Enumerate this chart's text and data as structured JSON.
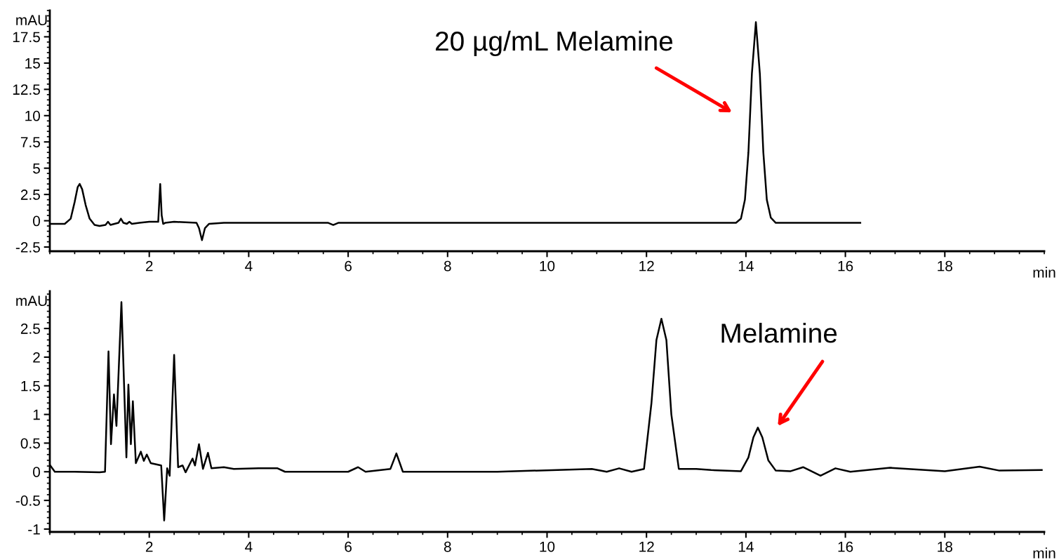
{
  "chart_data": [
    {
      "type": "line",
      "xlabel": "min",
      "ylabel": "mAU",
      "xlim": [
        0,
        20
      ],
      "ylim": [
        -2.9,
        20
      ],
      "xticks": [
        2,
        4,
        6,
        8,
        10,
        12,
        14,
        16,
        18
      ],
      "yticks": [
        -2.5,
        0,
        2.5,
        5,
        7.5,
        10,
        12.5,
        15,
        17.5
      ],
      "grid": false,
      "legend": false,
      "marker": "none",
      "line_style": "solid",
      "annotations": [
        "20 µg/mL Melamine"
      ],
      "series": [
        {
          "color": "#000000",
          "x": [
            0,
            0.3,
            0.42,
            0.5,
            0.56,
            0.6,
            0.65,
            0.72,
            0.8,
            0.9,
            1.0,
            1.12,
            1.17,
            1.22,
            1.38,
            1.43,
            1.48,
            1.55,
            1.6,
            1.65,
            1.8,
            2.0,
            2.18,
            2.22,
            2.25,
            2.28,
            2.32,
            2.5,
            2.95,
            3.0,
            3.06,
            3.12,
            3.2,
            3.5,
            5.6,
            5.7,
            5.8,
            7.0,
            13.8,
            13.9,
            13.98,
            14.05,
            14.12,
            14.2,
            14.28,
            14.35,
            14.42,
            14.5,
            14.6,
            16.3
          ],
          "values": [
            -0.3,
            -0.3,
            0.2,
            1.8,
            3.2,
            3.5,
            3.0,
            1.5,
            0.2,
            -0.4,
            -0.5,
            -0.4,
            -0.1,
            -0.4,
            -0.2,
            0.2,
            -0.2,
            -0.3,
            -0.1,
            -0.3,
            -0.2,
            -0.1,
            -0.1,
            3.5,
            0.5,
            -0.3,
            -0.2,
            -0.1,
            -0.2,
            -0.7,
            -1.85,
            -0.7,
            -0.3,
            -0.2,
            -0.2,
            -0.4,
            -0.2,
            -0.2,
            -0.2,
            0.2,
            2.0,
            6.5,
            14.0,
            18.9,
            14.0,
            6.5,
            2.0,
            0.3,
            -0.2,
            -0.2
          ]
        }
      ]
    },
    {
      "type": "line",
      "xlabel": "min",
      "ylabel": "mAU",
      "xlim": [
        0,
        20
      ],
      "ylim": [
        -1.05,
        3.15
      ],
      "xticks": [
        2,
        4,
        6,
        8,
        10,
        12,
        14,
        16,
        18
      ],
      "yticks": [
        -1,
        -0.5,
        0,
        0.5,
        1,
        1.5,
        2,
        2.5
      ],
      "grid": false,
      "legend": false,
      "marker": "none",
      "line_style": "solid",
      "annotations": [
        "Melamine"
      ],
      "series": [
        {
          "color": "#000000",
          "x": [
            0,
            0.1,
            0.5,
            1.0,
            1.11,
            1.18,
            1.23,
            1.29,
            1.34,
            1.44,
            1.54,
            1.58,
            1.63,
            1.67,
            1.73,
            1.83,
            1.89,
            1.95,
            2.03,
            2.24,
            2.3,
            2.36,
            2.41,
            2.5,
            2.58,
            2.67,
            2.73,
            2.87,
            2.92,
            3.0,
            3.08,
            3.18,
            3.25,
            3.5,
            3.7,
            4.2,
            4.58,
            4.73,
            6.0,
            6.2,
            6.35,
            6.85,
            6.97,
            7.1,
            9.0,
            10.9,
            11.2,
            11.45,
            11.7,
            11.95,
            12.1,
            12.2,
            12.3,
            12.4,
            12.5,
            12.65,
            13.0,
            13.3,
            13.9,
            14.05,
            14.15,
            14.24,
            14.33,
            14.45,
            14.6,
            14.9,
            15.15,
            15.5,
            15.8,
            16.1,
            16.9,
            18.0,
            18.7,
            19.1,
            19.95
          ],
          "values": [
            0.12,
            0.0,
            0.0,
            -0.01,
            0.0,
            2.1,
            0.48,
            1.35,
            0.8,
            2.96,
            0.25,
            1.52,
            0.48,
            1.23,
            0.15,
            0.35,
            0.19,
            0.3,
            0.15,
            0.11,
            -0.85,
            0.06,
            -0.07,
            2.04,
            0.08,
            0.11,
            -0.01,
            0.23,
            0.11,
            0.48,
            0.05,
            0.33,
            0.06,
            0.08,
            0.05,
            0.06,
            0.06,
            0.0,
            0.0,
            0.08,
            0.0,
            0.05,
            0.32,
            0.0,
            0.0,
            0.05,
            0.0,
            0.06,
            0.0,
            0.05,
            1.2,
            2.3,
            2.67,
            2.3,
            1.0,
            0.05,
            0.05,
            0.03,
            0.01,
            0.25,
            0.6,
            0.77,
            0.6,
            0.2,
            0.02,
            0.01,
            0.08,
            -0.07,
            0.06,
            0.0,
            0.07,
            0.01,
            0.09,
            0.02,
            0.03
          ]
        }
      ]
    }
  ]
}
